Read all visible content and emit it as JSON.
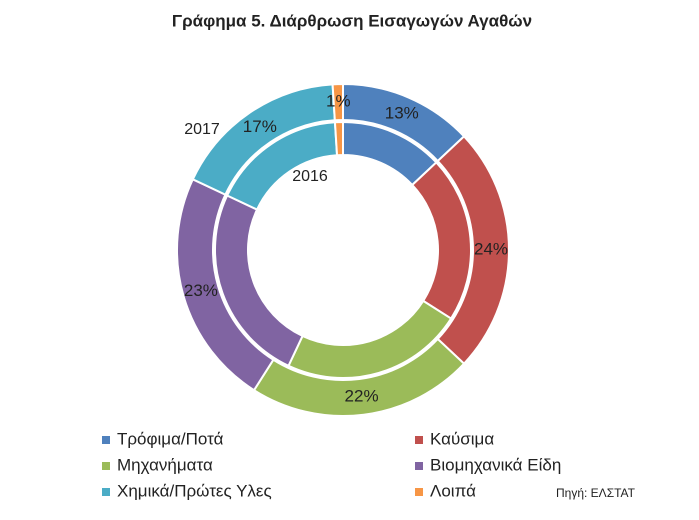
{
  "chart_data": {
    "type": "donut",
    "title": "Γράφημα 5. Διάρθρωση Εισαγωγών Αγαθών",
    "categories": [
      "Τρόφιμα/Ποτά",
      "Καύσιμα",
      "Μηχανήματα",
      "Βιομηχανικά Είδη",
      "Χημικά/Πρώτες Υλες",
      "Λοιπά"
    ],
    "colors": [
      "#4f81bd",
      "#c0504d",
      "#9bbb59",
      "#8064a2",
      "#4bacc6",
      "#f79646"
    ],
    "series": [
      {
        "name": "2016",
        "values": [
          13,
          21,
          23,
          25,
          17,
          1
        ]
      },
      {
        "name": "2017",
        "values": [
          13,
          24,
          22,
          23,
          17,
          1
        ],
        "value_labels": [
          "13%",
          "24%",
          "22%",
          "23%",
          "17%",
          "1%"
        ]
      }
    ],
    "source": "Πηγή: ΕΛΣΤΑΤ"
  }
}
